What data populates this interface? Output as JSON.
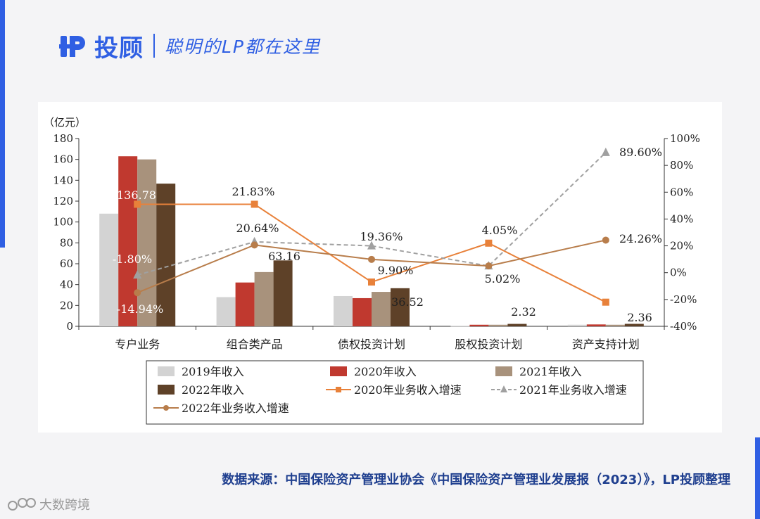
{
  "header": {
    "brand": "投顾",
    "slogan": "聪明的LP都在这里"
  },
  "colors": {
    "accent": "#2f5fe3",
    "s2019": "#d3d3d3",
    "s2020": "#c0392f",
    "s2021": "#a8927c",
    "s2022": "#5e4128",
    "g2020": "#e8813a",
    "g2021": "#a0a0a0",
    "g2022": "#b87d4b"
  },
  "chart_data": {
    "type": "bar",
    "y_unit_label": "（亿元）",
    "categories": [
      "专户业务",
      "组合类产品",
      "债权投资计划",
      "股权投资计划",
      "资产支持计划"
    ],
    "ylim": [
      0,
      180
    ],
    "yticks": [
      0,
      20,
      40,
      60,
      80,
      100,
      120,
      140,
      160,
      180
    ],
    "y2lim": [
      -40,
      100
    ],
    "y2ticks": [
      "-40%",
      "-20%",
      "0%",
      "20%",
      "40%",
      "60%",
      "80%",
      "100%"
    ],
    "series": [
      {
        "name": "2019年收入",
        "values": [
          108,
          28,
          29,
          0.5,
          1.5
        ]
      },
      {
        "name": "2020年收入",
        "values": [
          163,
          42,
          27,
          1.5,
          1.8
        ]
      },
      {
        "name": "2021年收入",
        "values": [
          160,
          52,
          33,
          1.5,
          1.5
        ]
      },
      {
        "name": "2022年收入",
        "values": [
          136.78,
          63.16,
          36.52,
          2.32,
          2.36
        ]
      }
    ],
    "growth_series": [
      {
        "name": "2020年业务收入增速",
        "values": [
          51,
          51,
          -7,
          22,
          -22
        ]
      },
      {
        "name": "2021年业务收入增速",
        "values": [
          -1.8,
          23,
          20,
          5,
          89.6
        ]
      },
      {
        "name": "2022年业务收入增速",
        "values": [
          -14.94,
          20.64,
          9.9,
          5.02,
          24.26
        ]
      }
    ],
    "value_labels": [
      "136.78",
      "63.16",
      "36.52",
      "2.32",
      "2.36"
    ],
    "growth_labels": [
      "21.83%",
      "20.64%",
      "19.36%",
      "9.90%",
      "4.05%",
      "5.02%",
      "89.60%",
      "24.26%",
      "-1.80%",
      "-14.94%"
    ],
    "legend": [
      "2019年收入",
      "2020年收入",
      "2021年收入",
      "2022年收入",
      "2020年业务收入增速",
      "2021年业务收入增速",
      "2022年业务收入增速"
    ]
  },
  "footer": {
    "source": "数据来源：中国保险资产管理业协会《中国保险资产管理业发展报（2023）》，LP投顾整理",
    "watermark": "大数跨境"
  }
}
